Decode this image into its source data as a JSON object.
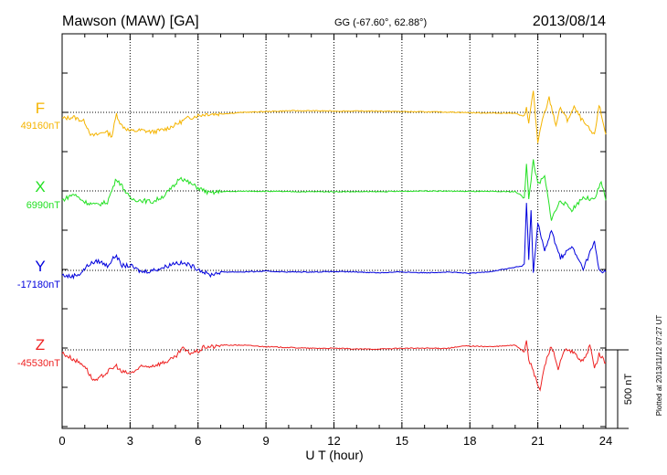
{
  "header": {
    "station": "Mawson (MAW)  [GA]",
    "coords": "GG (-67.60°,  62.88°)",
    "date": "2013/08/14"
  },
  "footer": {
    "plotted": "Plotted at 2013/11/12 07:27  UT",
    "scale_label": "500 nT"
  },
  "chart_data": {
    "type": "line",
    "xlabel": "U T (hour)",
    "xlim": [
      0,
      24
    ],
    "xticks": [
      "0",
      "3",
      "6",
      "9",
      "12",
      "15",
      "18",
      "21",
      "24"
    ],
    "scale_bar_nT": 500,
    "series": [
      {
        "name": "F",
        "baseline_label": "49160nT",
        "color": "#f5b400",
        "points": [
          [
            0,
            -40
          ],
          [
            0.5,
            -30
          ],
          [
            1,
            -60
          ],
          [
            1.3,
            -150
          ],
          [
            1.6,
            -140
          ],
          [
            1.9,
            -120
          ],
          [
            2.2,
            -150
          ],
          [
            2.4,
            -10
          ],
          [
            2.6,
            -80
          ],
          [
            3,
            -120
          ],
          [
            3.5,
            -115
          ],
          [
            4,
            -125
          ],
          [
            4.5,
            -110
          ],
          [
            5,
            -80
          ],
          [
            5.5,
            -40
          ],
          [
            6,
            -20
          ],
          [
            6.4,
            -10
          ],
          [
            7,
            -10
          ],
          [
            8,
            0
          ],
          [
            9,
            5
          ],
          [
            10,
            10
          ],
          [
            11,
            10
          ],
          [
            12,
            8
          ],
          [
            13,
            8
          ],
          [
            14,
            8
          ],
          [
            15,
            5
          ],
          [
            16,
            3
          ],
          [
            17,
            2
          ],
          [
            18,
            -2
          ],
          [
            19,
            -5
          ],
          [
            19.5,
            -5
          ],
          [
            20,
            -5
          ],
          [
            20.4,
            -30
          ],
          [
            20.5,
            40
          ],
          [
            20.6,
            -70
          ],
          [
            20.8,
            140
          ],
          [
            21,
            -200
          ],
          [
            21.2,
            -50
          ],
          [
            21.5,
            90
          ],
          [
            21.8,
            -80
          ],
          [
            22,
            30
          ],
          [
            22.3,
            -50
          ],
          [
            22.6,
            30
          ],
          [
            23,
            -60
          ],
          [
            23.5,
            -150
          ],
          [
            23.7,
            50
          ],
          [
            24,
            -140
          ]
        ]
      },
      {
        "name": "X",
        "baseline_label": "6990nT",
        "color": "#22e022",
        "points": [
          [
            0,
            -60
          ],
          [
            0.5,
            -20
          ],
          [
            1,
            -70
          ],
          [
            1.5,
            -90
          ],
          [
            2,
            -70
          ],
          [
            2.4,
            80
          ],
          [
            2.7,
            20
          ],
          [
            3,
            -50
          ],
          [
            3.5,
            -60
          ],
          [
            4,
            -70
          ],
          [
            4.5,
            -30
          ],
          [
            5,
            40
          ],
          [
            5.2,
            90
          ],
          [
            5.5,
            60
          ],
          [
            6,
            20
          ],
          [
            6.5,
            -15
          ],
          [
            7,
            -5
          ],
          [
            8,
            -2
          ],
          [
            9,
            -2
          ],
          [
            10,
            -5
          ],
          [
            12,
            -5
          ],
          [
            14,
            -5
          ],
          [
            16,
            0
          ],
          [
            18,
            -3
          ],
          [
            20,
            -5
          ],
          [
            20.4,
            -40
          ],
          [
            20.5,
            170
          ],
          [
            20.6,
            -60
          ],
          [
            20.8,
            200
          ],
          [
            21,
            40
          ],
          [
            21.3,
            90
          ],
          [
            21.6,
            -180
          ],
          [
            22,
            -60
          ],
          [
            22.5,
            -120
          ],
          [
            23,
            -40
          ],
          [
            23.5,
            -60
          ],
          [
            23.8,
            60
          ],
          [
            24,
            -60
          ]
        ]
      },
      {
        "name": "Y",
        "baseline_label": "-17180nT",
        "color": "#0000dd",
        "points": [
          [
            0,
            -30
          ],
          [
            0.4,
            -40
          ],
          [
            0.8,
            -20
          ],
          [
            1.2,
            40
          ],
          [
            1.6,
            60
          ],
          [
            2,
            30
          ],
          [
            2.4,
            100
          ],
          [
            2.6,
            30
          ],
          [
            3,
            30
          ],
          [
            3.5,
            -10
          ],
          [
            4,
            0
          ],
          [
            4.5,
            20
          ],
          [
            5,
            50
          ],
          [
            5.5,
            40
          ],
          [
            6,
            10
          ],
          [
            6.5,
            -30
          ],
          [
            7,
            -10
          ],
          [
            7.5,
            -10
          ],
          [
            8,
            -10
          ],
          [
            9,
            -5
          ],
          [
            10,
            -10
          ],
          [
            11,
            -10
          ],
          [
            12,
            -8
          ],
          [
            13,
            -10
          ],
          [
            14,
            -15
          ],
          [
            15,
            -10
          ],
          [
            16,
            -15
          ],
          [
            17,
            -10
          ],
          [
            18,
            -20
          ],
          [
            19,
            -5
          ],
          [
            20,
            20
          ],
          [
            20.4,
            30
          ],
          [
            20.5,
            420
          ],
          [
            20.6,
            80
          ],
          [
            20.7,
            380
          ],
          [
            20.8,
            -20
          ],
          [
            21,
            310
          ],
          [
            21.3,
            120
          ],
          [
            21.6,
            250
          ],
          [
            22,
            80
          ],
          [
            22.5,
            150
          ],
          [
            23,
            10
          ],
          [
            23.5,
            180
          ],
          [
            23.7,
            0
          ],
          [
            24,
            -10
          ]
        ]
      },
      {
        "name": "Z",
        "baseline_label": "-45530nT",
        "color": "#ee2222",
        "points": [
          [
            0,
            -20
          ],
          [
            0.5,
            -60
          ],
          [
            1,
            -100
          ],
          [
            1.3,
            -180
          ],
          [
            1.5,
            -200
          ],
          [
            2,
            -140
          ],
          [
            2.4,
            -100
          ],
          [
            2.6,
            -140
          ],
          [
            3,
            -150
          ],
          [
            3.5,
            -110
          ],
          [
            4,
            -100
          ],
          [
            4.5,
            -80
          ],
          [
            5,
            -50
          ],
          [
            5.3,
            10
          ],
          [
            5.6,
            -20
          ],
          [
            6,
            -10
          ],
          [
            6.3,
            20
          ],
          [
            6.8,
            20
          ],
          [
            7,
            30
          ],
          [
            8,
            30
          ],
          [
            9,
            20
          ],
          [
            10,
            15
          ],
          [
            11,
            10
          ],
          [
            12,
            10
          ],
          [
            13,
            5
          ],
          [
            14,
            5
          ],
          [
            15,
            10
          ],
          [
            16,
            10
          ],
          [
            17,
            10
          ],
          [
            17.8,
            25
          ],
          [
            19,
            20
          ],
          [
            20,
            30
          ],
          [
            20.4,
            -10
          ],
          [
            20.5,
            70
          ],
          [
            20.6,
            -60
          ],
          [
            20.9,
            -180
          ],
          [
            21.1,
            -260
          ],
          [
            21.3,
            -100
          ],
          [
            21.6,
            30
          ],
          [
            21.9,
            -120
          ],
          [
            22.2,
            0
          ],
          [
            22.6,
            -20
          ],
          [
            23,
            -80
          ],
          [
            23.3,
            30
          ],
          [
            23.5,
            -120
          ],
          [
            23.7,
            -30
          ],
          [
            24,
            -80
          ]
        ]
      }
    ]
  }
}
